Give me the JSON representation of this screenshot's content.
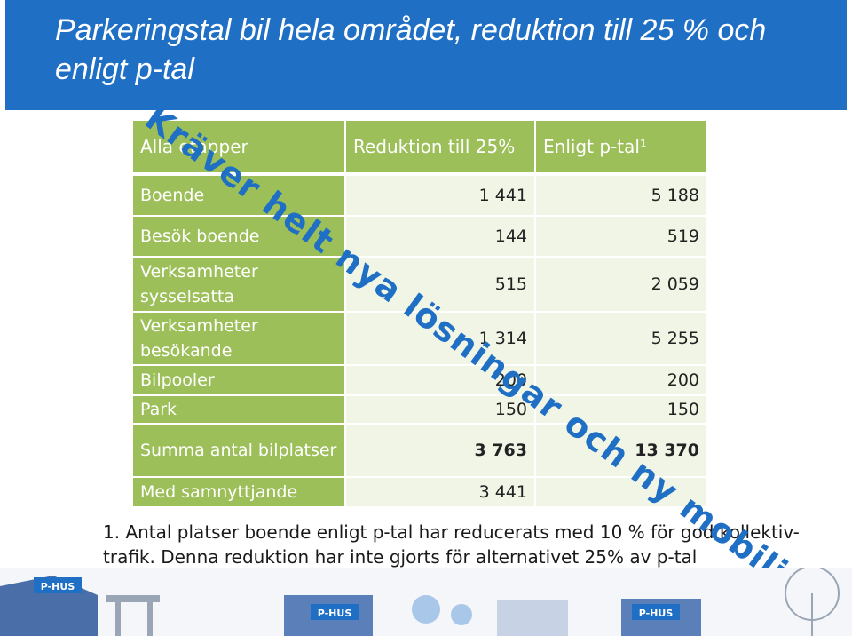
{
  "header": {
    "title": "Parkeringstal bil hela området, reduktion till 25 % och enligt p-tal"
  },
  "table": {
    "columns": [
      "Alla etapper",
      "Reduktion till 25%",
      "Enligt p-tal¹"
    ],
    "rows": [
      {
        "label": "Boende",
        "reduktion": "1 441",
        "ptal": "5 188"
      },
      {
        "label": "Besök boende",
        "reduktion": "144",
        "ptal": "519"
      },
      {
        "label": "Verksamheter sysselsatta",
        "reduktion": "515",
        "ptal": "2 059"
      },
      {
        "label": "Verksamheter besökande",
        "reduktion": "1 314",
        "ptal": "5 255"
      },
      {
        "label": "Bilpooler",
        "reduktion": "200",
        "ptal": "200"
      },
      {
        "label": "Park",
        "reduktion": "150",
        "ptal": "150"
      },
      {
        "label": "Summa antal bilplatser",
        "reduktion": "3 763",
        "ptal": "13 370"
      },
      {
        "label": "Med samnyttjande",
        "reduktion": "3 441",
        "ptal": ""
      }
    ]
  },
  "footnote": "1. Antal platser boende enligt p-tal har reducerats med 10 % för god kollektiv-trafik. Denna reduktion har inte gjorts för alternativet 25% av p-tal",
  "watermark": "Kräver helt nya lösningar och ny mobilitet",
  "illustration": {
    "sign_labels": [
      "P-HUS",
      "P-HUS",
      "P-HUS"
    ]
  },
  "colors": {
    "header": "#1f6fc4",
    "label_cell": "#9dbf5a",
    "value_cell": "#f1f5e6",
    "watermark": "#1f6fc4"
  }
}
